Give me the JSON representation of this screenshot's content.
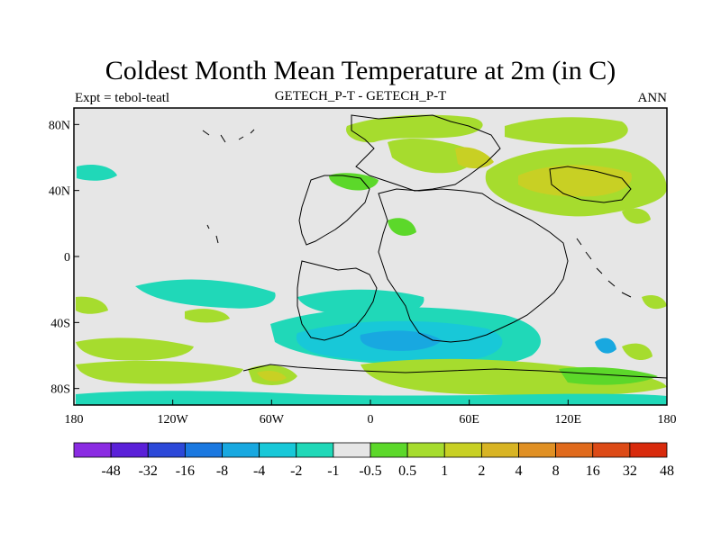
{
  "header": {
    "title": "Coldest Month Mean Temperature at 2m (in C)",
    "left": "Expt = tebol-teatl",
    "center": "GETECH_P-T - GETECH_P-T",
    "right": "ANN"
  },
  "map": {
    "projection": "cylindrical-equidistant",
    "lon_range": [
      -180,
      180
    ],
    "lat_range": [
      -90,
      90
    ],
    "background_color": "#e6e6e6",
    "coastline_color": "#000000"
  },
  "axes": {
    "x_ticks": [
      {
        "value": -180,
        "label": "180"
      },
      {
        "value": -120,
        "label": "120W"
      },
      {
        "value": -60,
        "label": "60W"
      },
      {
        "value": 0,
        "label": "0"
      },
      {
        "value": 60,
        "label": "60E"
      },
      {
        "value": 120,
        "label": "120E"
      },
      {
        "value": 180,
        "label": "180"
      }
    ],
    "y_ticks": [
      {
        "value": 80,
        "label": "80N"
      },
      {
        "value": 40,
        "label": "40N"
      },
      {
        "value": 0,
        "label": "0"
      },
      {
        "value": -40,
        "label": "40S"
      },
      {
        "value": -80,
        "label": "80S"
      }
    ]
  },
  "colorbar": {
    "colors": [
      "#8a2be2",
      "#5a20d8",
      "#2c48d8",
      "#1a78e0",
      "#18a8e0",
      "#18c8d8",
      "#20d8b8",
      "#e6e6e6",
      "#5cd82a",
      "#a6dc2e",
      "#c8d024",
      "#d8b424",
      "#e09024",
      "#e06a1c",
      "#dc4a16",
      "#d82a0c"
    ],
    "labels": [
      "-48",
      "-32",
      "-16",
      "-8",
      "-4",
      "-2",
      "-1",
      "-0.5",
      "0.5",
      "1",
      "2",
      "4",
      "8",
      "16",
      "32",
      "48"
    ]
  },
  "field_colors": {
    "light_green": "#a6dc2e",
    "green": "#5cd82a",
    "yellow_green": "#c8d024",
    "teal": "#20d8b8",
    "cyan": "#18c8d8",
    "blue": "#18a8e0",
    "orange": "#e09024"
  }
}
